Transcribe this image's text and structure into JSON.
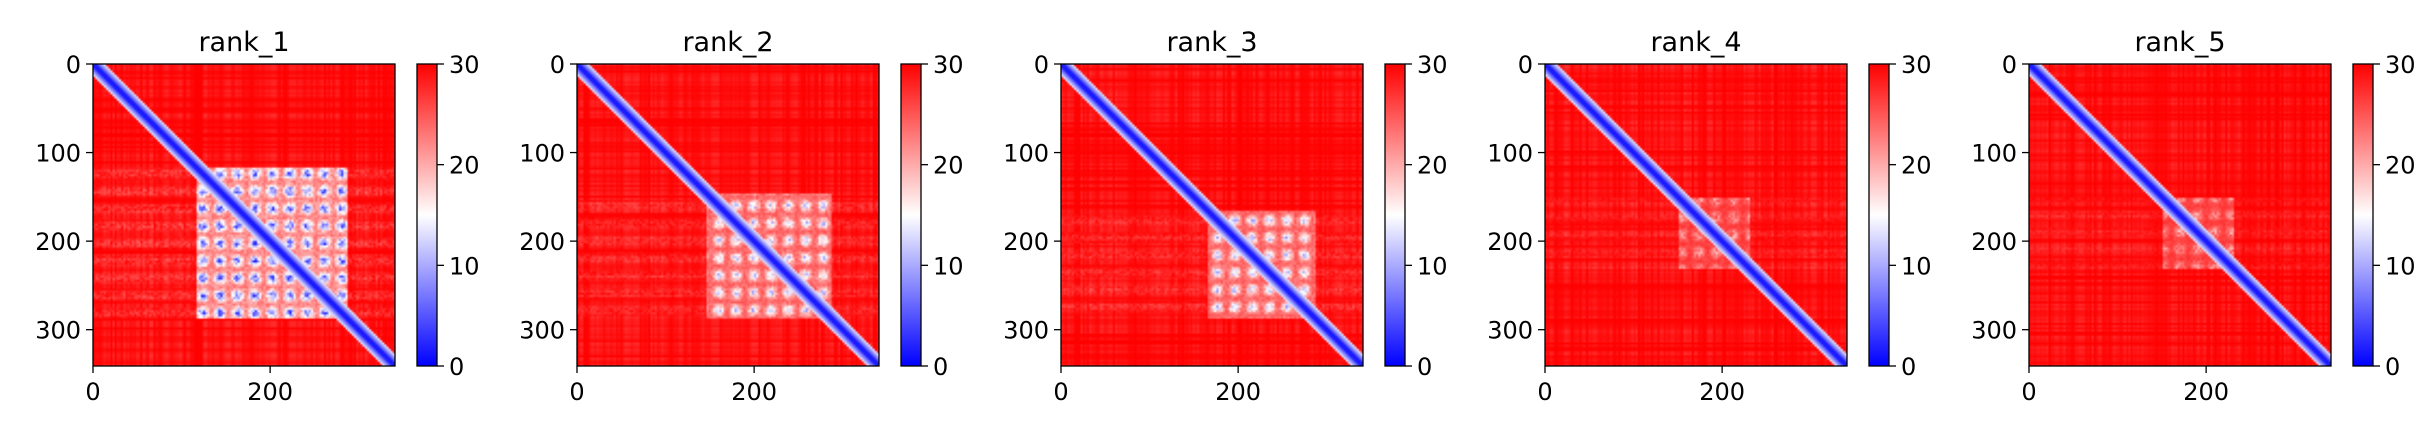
{
  "chart_data": {
    "type": "heatmap",
    "matrix_size": 341,
    "x_ticks": [
      0,
      200
    ],
    "y_ticks": [
      0,
      100,
      200,
      300
    ],
    "colorbar": {
      "range": [
        0,
        30
      ],
      "ticks": [
        0,
        10,
        20,
        30
      ],
      "colors": [
        "#0000ff",
        "#ffffff",
        "#ff0000"
      ],
      "colormap": "bwr"
    },
    "panels": [
      {
        "title": "rank_1",
        "pattern": "broad",
        "domain": [
          115,
          285
        ]
      },
      {
        "title": "rank_2",
        "pattern": "medium",
        "domain": [
          145,
          285
        ]
      },
      {
        "title": "rank_3",
        "pattern": "medium",
        "domain": [
          165,
          285
        ]
      },
      {
        "title": "rank_4",
        "pattern": "sparse",
        "domain": [
          150,
          230
        ]
      },
      {
        "title": "rank_5",
        "pattern": "sparse",
        "domain": [
          150,
          230
        ]
      }
    ]
  }
}
